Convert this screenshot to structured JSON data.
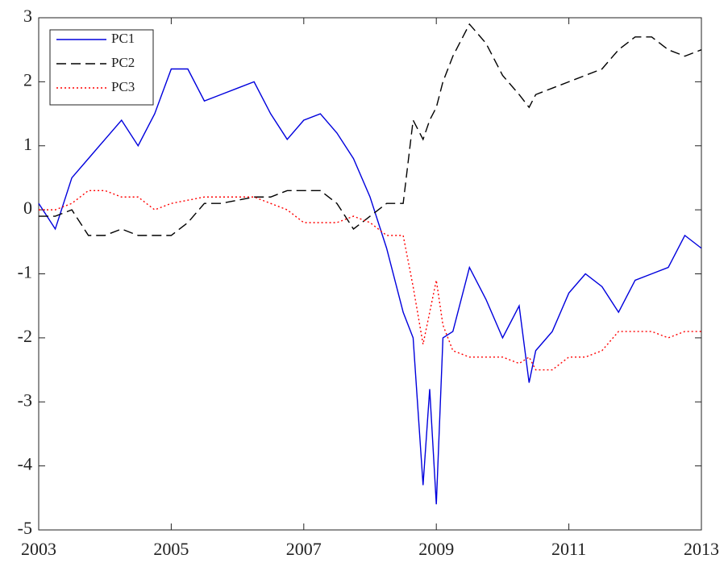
{
  "chart_data": {
    "type": "line",
    "x": [
      2003,
      2003.25,
      2003.5,
      2003.75,
      2004,
      2004.25,
      2004.5,
      2004.75,
      2005,
      2005.25,
      2005.5,
      2005.75,
      2006,
      2006.25,
      2006.5,
      2006.75,
      2007,
      2007.25,
      2007.5,
      2007.75,
      2008,
      2008.25,
      2008.5,
      2008.65,
      2008.8,
      2008.9,
      2009,
      2009.1,
      2009.25,
      2009.5,
      2009.75,
      2010,
      2010.25,
      2010.4,
      2010.5,
      2010.75,
      2011,
      2011.25,
      2011.5,
      2011.75,
      2012,
      2012.25,
      2012.5,
      2012.75,
      2013
    ],
    "series": [
      {
        "name": "PC1",
        "color": "#0000dd",
        "dash": "solid",
        "values": [
          0.1,
          -0.3,
          0.5,
          0.8,
          1.1,
          1.4,
          1.0,
          1.5,
          2.2,
          2.2,
          1.7,
          1.8,
          1.9,
          2.0,
          1.5,
          1.1,
          1.4,
          1.5,
          1.2,
          0.8,
          0.2,
          -0.6,
          -1.6,
          -2.0,
          -4.3,
          -2.8,
          -4.6,
          -2.0,
          -1.9,
          -0.9,
          -1.4,
          -2.0,
          -1.5,
          -2.7,
          -2.2,
          -1.9,
          -1.3,
          -1.0,
          -1.2,
          -1.6,
          -1.1,
          -1.0,
          -0.9,
          -0.4,
          -0.6
        ]
      },
      {
        "name": "PC2",
        "color": "#000000",
        "dash": "dashed",
        "values": [
          -0.1,
          -0.1,
          0.0,
          -0.4,
          -0.4,
          -0.3,
          -0.4,
          -0.4,
          -0.4,
          -0.2,
          0.1,
          0.1,
          0.15,
          0.2,
          0.2,
          0.3,
          0.3,
          0.3,
          0.1,
          -0.3,
          -0.1,
          0.1,
          0.1,
          1.4,
          1.1,
          1.4,
          1.6,
          2.0,
          2.4,
          2.9,
          2.6,
          2.1,
          1.8,
          1.6,
          1.8,
          1.9,
          2.0,
          2.1,
          2.2,
          2.5,
          2.7,
          2.7,
          2.5,
          2.4,
          2.5
        ]
      },
      {
        "name": "PC3",
        "color": "#ff0000",
        "dash": "dotted",
        "values": [
          0.0,
          0.0,
          0.1,
          0.3,
          0.3,
          0.2,
          0.2,
          0.0,
          0.1,
          0.15,
          0.2,
          0.2,
          0.2,
          0.2,
          0.1,
          0.0,
          -0.2,
          -0.2,
          -0.2,
          -0.1,
          -0.2,
          -0.4,
          -0.4,
          -1.2,
          -2.1,
          -1.6,
          -1.1,
          -1.8,
          -2.2,
          -2.3,
          -2.3,
          -2.3,
          -2.4,
          -2.3,
          -2.5,
          -2.5,
          -2.3,
          -2.3,
          -2.2,
          -1.9,
          -1.9,
          -1.9,
          -2.0,
          -1.9,
          -1.9
        ]
      }
    ],
    "xlim": [
      2003,
      2013
    ],
    "xticks": [
      2003,
      2005,
      2007,
      2009,
      2011,
      2013
    ],
    "ylim": [
      -5,
      3
    ],
    "yticks": [
      -5,
      -4,
      -3,
      -2,
      -1,
      0,
      1,
      2,
      3
    ],
    "legend": "top-left",
    "grid": false
  }
}
